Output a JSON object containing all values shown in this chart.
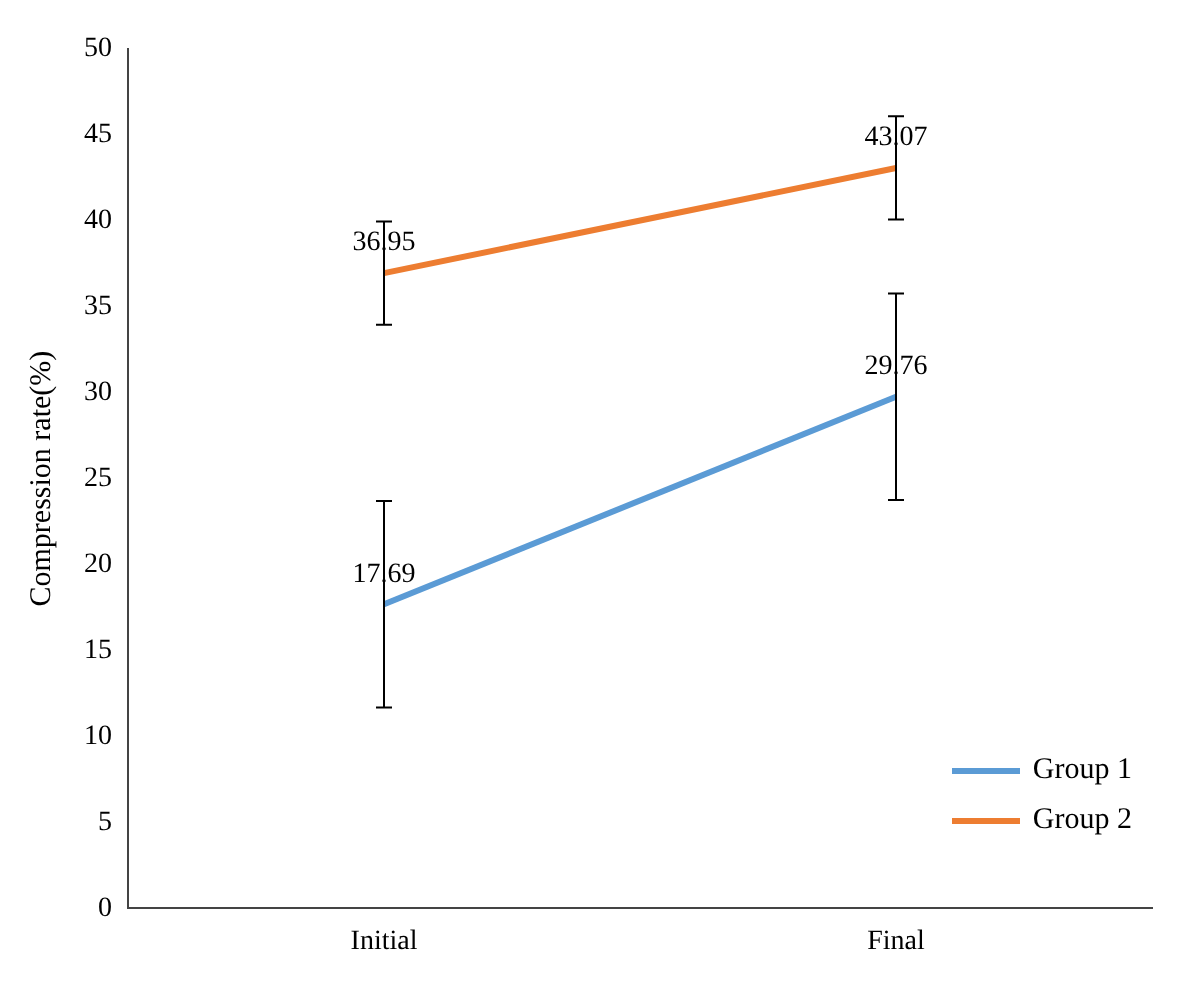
{
  "chart_data": {
    "type": "line",
    "ylabel": "Compression rate(%)",
    "categories": [
      "Initial",
      "Final"
    ],
    "series": [
      {
        "name": "Group 1",
        "color": "#5b9bd5",
        "values": [
          17.69,
          29.76
        ],
        "errors": [
          6,
          6
        ]
      },
      {
        "name": "Group 2",
        "color": "#ed7d31",
        "values": [
          36.95,
          43.07
        ],
        "errors": [
          3,
          3
        ]
      }
    ],
    "ylim": [
      0,
      50
    ],
    "yticks": [
      0,
      5,
      10,
      15,
      20,
      25,
      30,
      35,
      40,
      45,
      50
    ],
    "grid": false,
    "legend": "bottom right",
    "data_labels": true,
    "marker": "none"
  }
}
